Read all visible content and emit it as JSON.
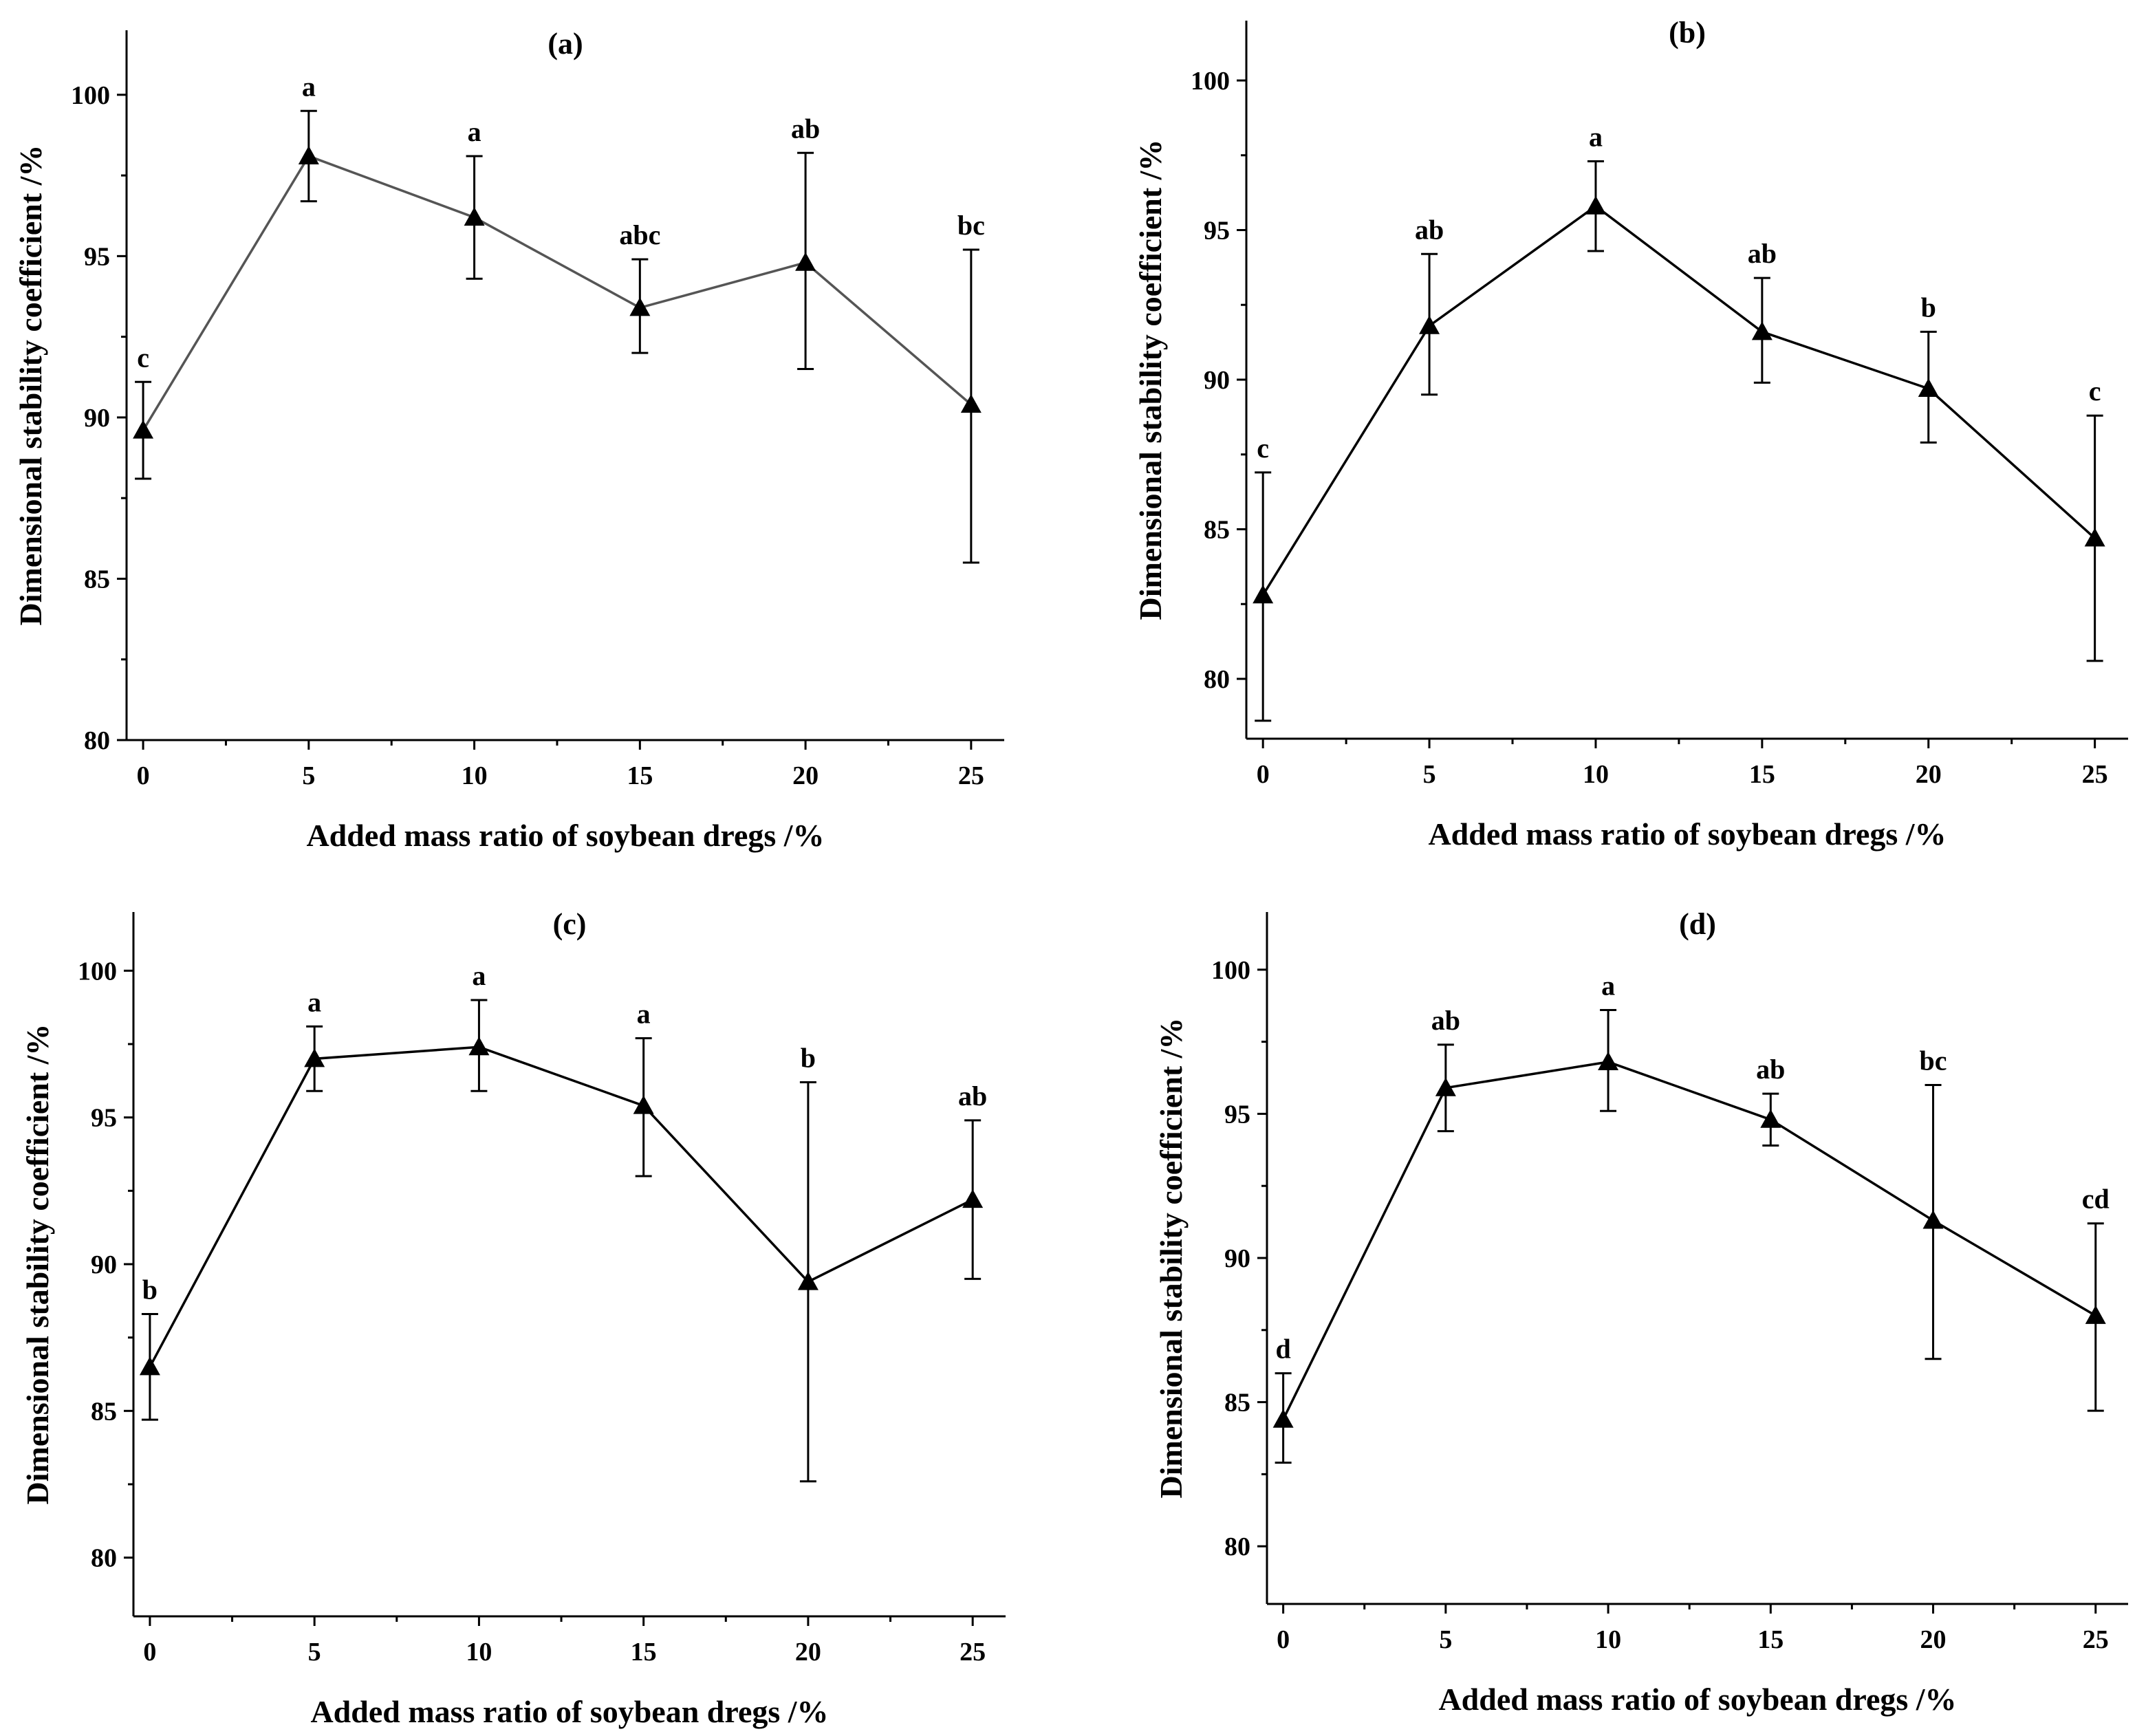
{
  "chart_data": [
    {
      "type": "line",
      "title": "(a)",
      "xlabel": "Added mass ratio of soybean dregs /%",
      "ylabel": "Dimensional stability coefficient /%",
      "x": [
        0,
        5,
        10,
        15,
        20,
        25
      ],
      "xticks": [
        0,
        5,
        10,
        15,
        20,
        25
      ],
      "xlim": [
        -0.5,
        26
      ],
      "yticks": [
        80,
        85,
        90,
        95,
        100
      ],
      "ylim": [
        80,
        102
      ],
      "line_color": "#555555",
      "series": [
        {
          "name": "Dimensional stability coefficient",
          "values": [
            89.6,
            98.1,
            96.2,
            93.4,
            94.8,
            90.4
          ],
          "error_high": [
            91.1,
            99.5,
            98.1,
            94.9,
            98.2,
            95.2
          ],
          "error_low": [
            88.1,
            96.7,
            94.3,
            92.0,
            91.5,
            85.5
          ],
          "labels": [
            "c",
            "a",
            "a",
            "abc",
            "ab",
            "bc"
          ]
        }
      ]
    },
    {
      "type": "line",
      "title": "(b)",
      "xlabel": "Added mass ratio of soybean dregs /%",
      "ylabel": "Dimensional stability coefficient /%",
      "x": [
        0,
        5,
        10,
        15,
        20,
        25
      ],
      "xticks": [
        0,
        5,
        10,
        15,
        20,
        25
      ],
      "xlim": [
        -0.5,
        26
      ],
      "yticks": [
        80,
        85,
        90,
        95,
        100
      ],
      "ylim": [
        78,
        102
      ],
      "line_color": "#000000",
      "series": [
        {
          "name": "Dimensional stability coefficient",
          "values": [
            82.8,
            91.8,
            95.8,
            91.6,
            89.7,
            84.7
          ],
          "error_high": [
            86.9,
            94.2,
            97.3,
            93.4,
            91.6,
            88.8
          ],
          "error_low": [
            78.6,
            89.5,
            94.3,
            89.9,
            87.9,
            80.6
          ],
          "labels": [
            "c",
            "ab",
            "a",
            "ab",
            "b",
            "c"
          ]
        }
      ]
    },
    {
      "type": "line",
      "title": "(c)",
      "xlabel": "Added mass ratio of soybean dregs /%",
      "ylabel": "Dimensional stability coefficient /%",
      "x": [
        0,
        5,
        10,
        15,
        20,
        25
      ],
      "xticks": [
        0,
        5,
        10,
        15,
        20,
        25
      ],
      "xlim": [
        -0.5,
        26
      ],
      "yticks": [
        80,
        85,
        90,
        95,
        100
      ],
      "ylim": [
        78,
        102
      ],
      "line_color": "#000000",
      "series": [
        {
          "name": "Dimensional stability coefficient",
          "values": [
            86.5,
            97.0,
            97.4,
            95.4,
            89.4,
            92.2
          ],
          "error_high": [
            88.3,
            98.1,
            99.0,
            97.7,
            96.2,
            94.9
          ],
          "error_low": [
            84.7,
            95.9,
            95.9,
            93.0,
            82.6,
            89.5
          ],
          "labels": [
            "b",
            "a",
            "a",
            "a",
            "b",
            "ab"
          ]
        }
      ]
    },
    {
      "type": "line",
      "title": "(d)",
      "xlabel": "Added mass ratio of soybean dregs /%",
      "ylabel": "Dimensional stability coefficient /%",
      "x": [
        0,
        5,
        10,
        15,
        20,
        25
      ],
      "xticks": [
        0,
        5,
        10,
        15,
        20,
        25
      ],
      "xlim": [
        -0.5,
        26
      ],
      "yticks": [
        80,
        85,
        90,
        95,
        100
      ],
      "ylim": [
        78,
        102
      ],
      "line_color": "#000000",
      "series": [
        {
          "name": "Dimensional stability coefficient",
          "values": [
            84.4,
            95.9,
            96.8,
            94.8,
            91.3,
            88.0
          ],
          "error_high": [
            86.0,
            97.4,
            98.6,
            95.7,
            96.0,
            91.2
          ],
          "error_low": [
            82.9,
            94.4,
            95.1,
            93.9,
            86.5,
            84.7
          ],
          "labels": [
            "d",
            "ab",
            "a",
            "ab",
            "bc",
            "cd"
          ]
        }
      ]
    }
  ]
}
